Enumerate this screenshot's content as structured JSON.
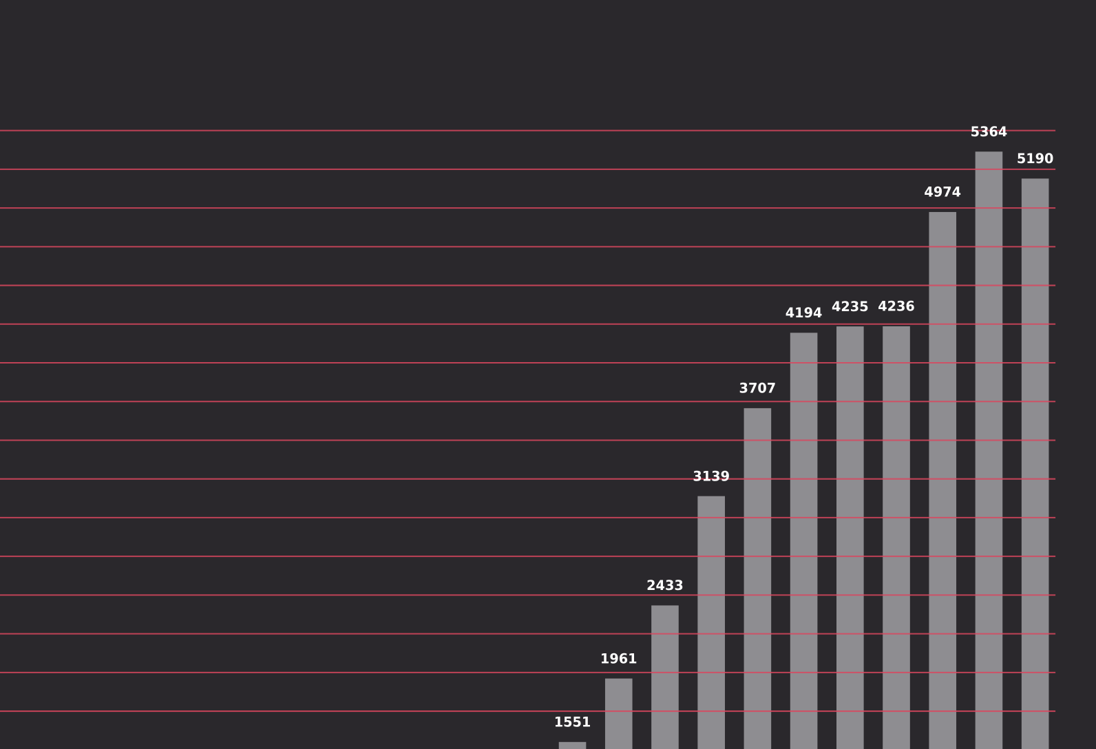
{
  "chart_data": {
    "type": "bar",
    "categories": [
      "",
      "",
      "",
      "",
      "",
      "",
      "",
      "",
      "",
      "",
      ""
    ],
    "values": [
      1551,
      1961,
      2433,
      3139,
      3707,
      4194,
      4235,
      4236,
      4974,
      5364,
      5190
    ],
    "title": "",
    "xlabel": "",
    "ylabel": "",
    "gridlines": [
      1750,
      2000,
      2250,
      2500,
      2750,
      3000,
      3250,
      3500,
      3750,
      4000,
      4250,
      4500,
      4750,
      5000,
      5250,
      5500
    ],
    "grid": true,
    "data_labels": true,
    "colors": {
      "background": "#2a282c",
      "bar": "#8e8d91",
      "grid": "#d9475e",
      "label": "#ffffff"
    }
  }
}
